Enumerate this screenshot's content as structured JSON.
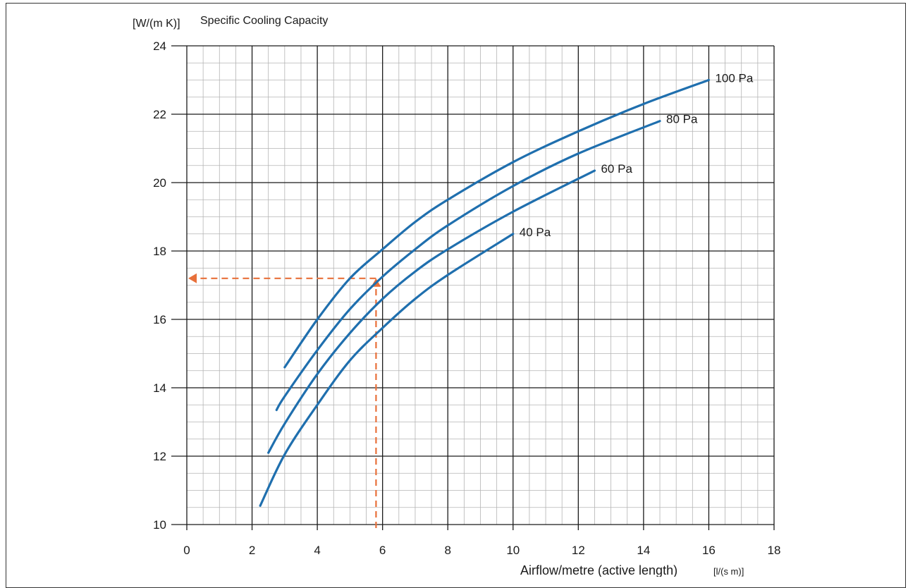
{
  "chart_data": {
    "type": "line",
    "title": "Specific Cooling Capacity",
    "ylabel": "[W/(m K)]",
    "xlabel": "Airflow/metre (active length)",
    "xlabel_unit": "[l/(s m)]",
    "xlim": [
      0,
      18
    ],
    "ylim": [
      10,
      24
    ],
    "xticks": [
      0,
      2,
      4,
      6,
      8,
      10,
      12,
      14,
      16,
      18
    ],
    "yticks": [
      10,
      12,
      14,
      16,
      18,
      20,
      22,
      24
    ],
    "grid": true,
    "series_color": "#1f6fae",
    "annotation_color": "#e8703a",
    "series": [
      {
        "name": "100 Pa",
        "x": [
          3.0,
          4.0,
          5.0,
          6.0,
          7.0,
          8.0,
          10.0,
          12.0,
          14.0,
          16.0
        ],
        "y": [
          14.6,
          16.0,
          17.2,
          18.05,
          18.85,
          19.5,
          20.6,
          21.5,
          22.3,
          23.0
        ]
      },
      {
        "name": "80 Pa",
        "x": [
          2.75,
          3.0,
          4.0,
          5.0,
          6.0,
          7.0,
          8.0,
          10.0,
          12.0,
          14.5
        ],
        "y": [
          13.35,
          13.75,
          15.1,
          16.3,
          17.25,
          18.05,
          18.75,
          19.9,
          20.85,
          21.8
        ]
      },
      {
        "name": "60 Pa",
        "x": [
          2.5,
          3.0,
          4.0,
          5.0,
          6.0,
          7.0,
          8.0,
          10.0,
          12.5
        ],
        "y": [
          12.1,
          12.95,
          14.4,
          15.6,
          16.6,
          17.4,
          18.05,
          19.15,
          20.35
        ]
      },
      {
        "name": "40 Pa",
        "x": [
          2.25,
          3.0,
          4.0,
          5.0,
          6.0,
          7.0,
          8.0,
          10.0
        ],
        "y": [
          10.55,
          12.05,
          13.5,
          14.8,
          15.75,
          16.6,
          17.3,
          18.5
        ]
      }
    ],
    "example": {
      "x": 5.8,
      "y": 17.2
    }
  }
}
